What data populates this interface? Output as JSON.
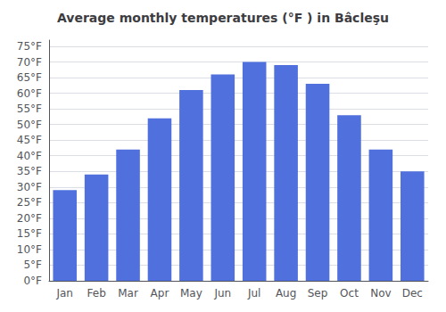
{
  "chart_data": {
    "type": "bar",
    "title": "Average monthly temperatures (°F ) in Bâcleşu",
    "categories": [
      "Jan",
      "Feb",
      "Mar",
      "Apr",
      "May",
      "Jun",
      "Jul",
      "Aug",
      "Sep",
      "Oct",
      "Nov",
      "Dec"
    ],
    "values": [
      29,
      34,
      42,
      52,
      61,
      66,
      70,
      69,
      63,
      53,
      42,
      35
    ],
    "ylim": [
      0,
      77
    ],
    "yticks": [
      {
        "value": 0,
        "label": "0°F"
      },
      {
        "value": 5,
        "label": "5°F"
      },
      {
        "value": 10,
        "label": "10°F"
      },
      {
        "value": 15,
        "label": "15°F"
      },
      {
        "value": 20,
        "label": "20°F"
      },
      {
        "value": 25,
        "label": "25°F"
      },
      {
        "value": 30,
        "label": "30°F"
      },
      {
        "value": 35,
        "label": "35°F"
      },
      {
        "value": 40,
        "label": "40°F"
      },
      {
        "value": 45,
        "label": "45°F"
      },
      {
        "value": 50,
        "label": "50°F"
      },
      {
        "value": 55,
        "label": "55°F"
      },
      {
        "value": 60,
        "label": "60°F"
      },
      {
        "value": 65,
        "label": "65°F"
      },
      {
        "value": 70,
        "label": "70°F"
      },
      {
        "value": 75,
        "label": "75°F"
      }
    ],
    "grid": true
  }
}
